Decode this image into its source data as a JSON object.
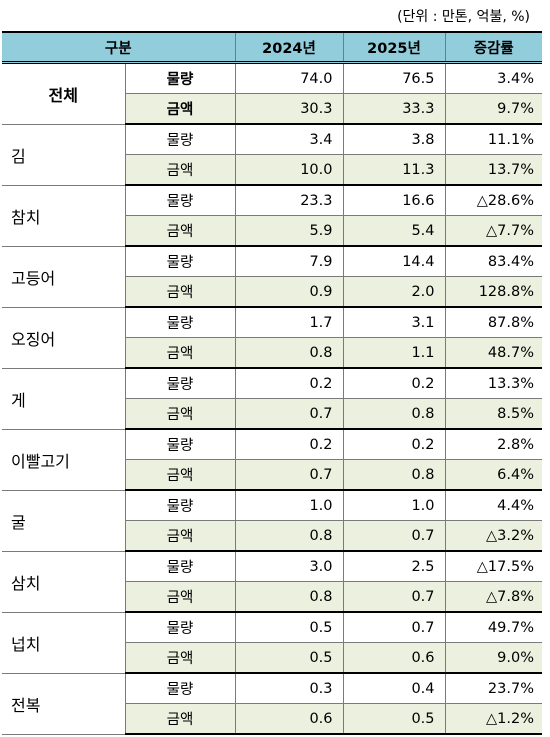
{
  "unit_note": "(단위 : 만톤, 억불, %)",
  "header": {
    "category": "구분",
    "y2024": "2024년",
    "y2025": "2025년",
    "change": "증감률"
  },
  "rows": [
    {
      "name": "전체",
      "volume": {
        "label": "물량",
        "y2024": "74.0",
        "y2025": "76.5",
        "change": "3.4%"
      },
      "amount": {
        "label": "금액",
        "y2024": "30.3",
        "y2025": "33.3",
        "change": "9.7%"
      }
    },
    {
      "name": "김",
      "volume": {
        "label": "물량",
        "y2024": "3.4",
        "y2025": "3.8",
        "change": "11.1%"
      },
      "amount": {
        "label": "금액",
        "y2024": "10.0",
        "y2025": "11.3",
        "change": "13.7%"
      }
    },
    {
      "name": "참치",
      "volume": {
        "label": "물량",
        "y2024": "23.3",
        "y2025": "16.6",
        "change": "△28.6%"
      },
      "amount": {
        "label": "금액",
        "y2024": "5.9",
        "y2025": "5.4",
        "change": "△7.7%"
      }
    },
    {
      "name": "고등어",
      "volume": {
        "label": "물량",
        "y2024": "7.9",
        "y2025": "14.4",
        "change": "83.4%"
      },
      "amount": {
        "label": "금액",
        "y2024": "0.9",
        "y2025": "2.0",
        "change": "128.8%"
      }
    },
    {
      "name": "오징어",
      "volume": {
        "label": "물량",
        "y2024": "1.7",
        "y2025": "3.1",
        "change": "87.8%"
      },
      "amount": {
        "label": "금액",
        "y2024": "0.8",
        "y2025": "1.1",
        "change": "48.7%"
      }
    },
    {
      "name": "게",
      "volume": {
        "label": "물량",
        "y2024": "0.2",
        "y2025": "0.2",
        "change": "13.3%"
      },
      "amount": {
        "label": "금액",
        "y2024": "0.7",
        "y2025": "0.8",
        "change": "8.5%"
      }
    },
    {
      "name": "이빨고기",
      "volume": {
        "label": "물량",
        "y2024": "0.2",
        "y2025": "0.2",
        "change": "2.8%"
      },
      "amount": {
        "label": "금액",
        "y2024": "0.7",
        "y2025": "0.8",
        "change": "6.4%"
      }
    },
    {
      "name": "굴",
      "volume": {
        "label": "물량",
        "y2024": "1.0",
        "y2025": "1.0",
        "change": "4.4%"
      },
      "amount": {
        "label": "금액",
        "y2024": "0.8",
        "y2025": "0.7",
        "change": "△3.2%"
      }
    },
    {
      "name": "삼치",
      "volume": {
        "label": "물량",
        "y2024": "3.0",
        "y2025": "2.5",
        "change": "△17.5%"
      },
      "amount": {
        "label": "금액",
        "y2024": "0.8",
        "y2025": "0.7",
        "change": "△7.8%"
      }
    },
    {
      "name": "넙치",
      "volume": {
        "label": "물량",
        "y2024": "0.5",
        "y2025": "0.7",
        "change": "49.7%"
      },
      "amount": {
        "label": "금액",
        "y2024": "0.5",
        "y2025": "0.6",
        "change": "9.0%"
      }
    },
    {
      "name": "전복",
      "volume": {
        "label": "물량",
        "y2024": "0.3",
        "y2025": "0.4",
        "change": "23.7%"
      },
      "amount": {
        "label": "금액",
        "y2024": "0.6",
        "y2025": "0.5",
        "change": "△1.2%"
      }
    }
  ],
  "colors": {
    "header_bg": "#92cddc",
    "amount_row_bg": "#ebf1de",
    "border": "#7a7a7a"
  }
}
